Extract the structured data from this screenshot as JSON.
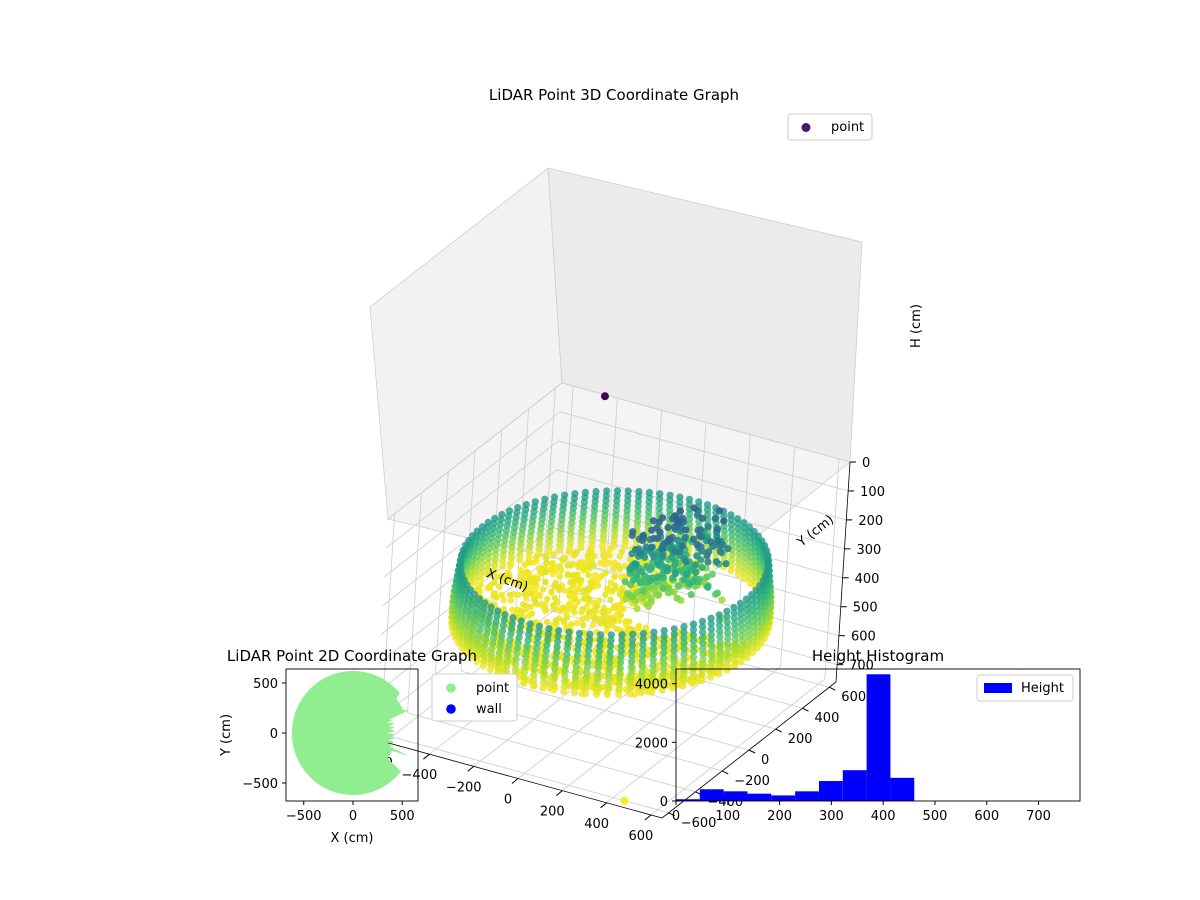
{
  "colors": {
    "scatter2d_point": "#90ee90",
    "scatter2d_wall": "#0000ff",
    "histogram_bar": "#0000ff",
    "legend_3d_marker": "#481a6c",
    "stray_low_point": "#fde725",
    "stray_high_point": "#440154"
  },
  "chart_data": [
    {
      "type": "scatter",
      "title": "LiDAR Point 3D Coordinate Graph",
      "xlabel": "X (cm)",
      "ylabel": "Y (cm)",
      "zlabel": "H (cm)",
      "xticks": [
        "−600",
        "−400",
        "−200",
        "0",
        "200",
        "400",
        "600"
      ],
      "yticks": [
        "600",
        "400",
        "200",
        "0",
        "−200",
        "−400",
        "−600"
      ],
      "zticks": [
        "0",
        "100",
        "200",
        "300",
        "400",
        "500",
        "600",
        "700"
      ],
      "xlim": [
        -650,
        650
      ],
      "ylim": [
        -650,
        650
      ],
      "zlim": [
        760,
        0
      ],
      "zaxis_inverted": true,
      "colormap": "viridis",
      "legend": [
        "point"
      ],
      "legend_position": "top-right",
      "grid": true,
      "description_of_cloud": "Dense ring of points, radius ~620 cm, heights 400–460 cm, with a wedge of low-height points toward +X/+Y",
      "sample_points": [
        {
          "x": -450,
          "y": 640,
          "h": 0
        },
        {
          "x": 450,
          "y": -600,
          "h": 760
        },
        {
          "x": 0,
          "y": 600,
          "h": 420
        },
        {
          "x": 600,
          "y": 0,
          "h": 410
        },
        {
          "x": -600,
          "y": 0,
          "h": 440
        },
        {
          "x": 0,
          "y": -600,
          "h": 420
        },
        {
          "x": 150,
          "y": 300,
          "h": 250
        },
        {
          "x": 250,
          "y": 150,
          "h": 300
        },
        {
          "x": 100,
          "y": 100,
          "h": 380
        }
      ]
    },
    {
      "type": "scatter",
      "title": "LiDAR Point 2D Coordinate Graph",
      "xlabel": "X (cm)",
      "ylabel": "Y (cm)",
      "xticks": [
        "−500",
        "0",
        "500"
      ],
      "yticks": [
        "500",
        "0",
        "−500"
      ],
      "xlim": [
        -680,
        660
      ],
      "ylim": [
        -680,
        640
      ],
      "legend": [
        "point",
        "wall"
      ],
      "legend_position": "outside-right",
      "series": [
        {
          "name": "point",
          "shape": "filled disk of radius ~620 cm with notches cut into the +X side"
        },
        {
          "name": "wall",
          "points": []
        }
      ]
    },
    {
      "type": "bar",
      "title": "Height Histogram",
      "legend": [
        "Height"
      ],
      "legend_position": "top-right",
      "xticks": [
        "0",
        "100",
        "200",
        "300",
        "400",
        "500",
        "600",
        "700"
      ],
      "yticks": [
        "0",
        "2000",
        "4000"
      ],
      "xlim": [
        0,
        780
      ],
      "ylim": [
        0,
        4500
      ],
      "bin_width": 46,
      "bins": [
        {
          "start": 0,
          "count": 60
        },
        {
          "start": 46,
          "count": 400
        },
        {
          "start": 92,
          "count": 330
        },
        {
          "start": 138,
          "count": 250
        },
        {
          "start": 184,
          "count": 190
        },
        {
          "start": 230,
          "count": 330
        },
        {
          "start": 276,
          "count": 680
        },
        {
          "start": 322,
          "count": 1050
        },
        {
          "start": 368,
          "count": 4320
        },
        {
          "start": 414,
          "count": 790
        },
        {
          "start": 460,
          "count": 0
        },
        {
          "start": 506,
          "count": 0
        },
        {
          "start": 552,
          "count": 0
        },
        {
          "start": 598,
          "count": 0
        },
        {
          "start": 644,
          "count": 0
        },
        {
          "start": 690,
          "count": 0
        },
        {
          "start": 736,
          "count": 0
        }
      ]
    }
  ]
}
